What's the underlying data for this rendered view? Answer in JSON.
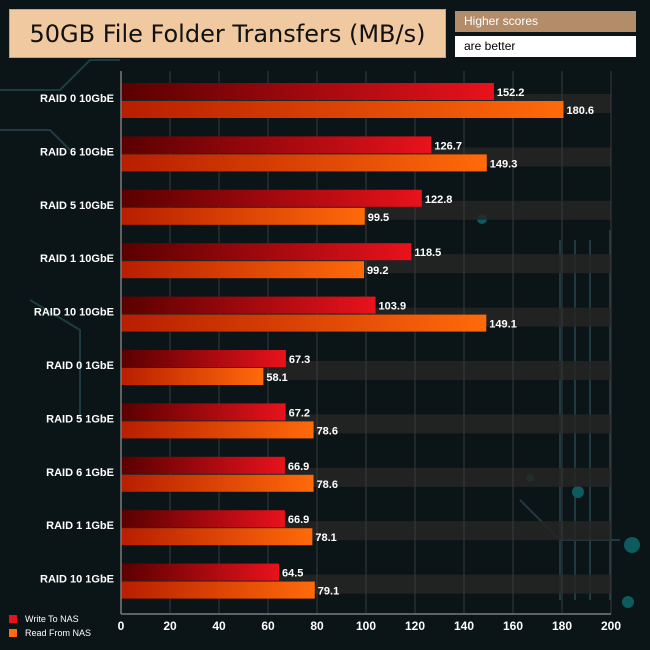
{
  "header": {
    "title": "50GB File Folder Transfers (MB/s)",
    "note_line1": "Higher scores",
    "note_line2": "are better"
  },
  "chart_data": {
    "type": "bar",
    "orientation": "horizontal",
    "categories": [
      "RAID 0 10GbE",
      "RAID 6 10GbE",
      "RAID 5 10GbE",
      "RAID 1 10GbE",
      "RAID 10 10GbE",
      "RAID 0 1GbE",
      "RAID 5 1GbE",
      "RAID 6 1GbE",
      "RAID 1 1GbE",
      "RAID 10 1GbE"
    ],
    "series": [
      {
        "name": "Write To NAS",
        "color": "#e8121c",
        "values": [
          152.2,
          126.7,
          122.8,
          118.5,
          103.9,
          67.3,
          67.2,
          66.9,
          66.9,
          64.5
        ]
      },
      {
        "name": "Read From NAS",
        "color": "#ff6a0a",
        "values": [
          180.6,
          149.3,
          99.5,
          99.2,
          149.1,
          58.1,
          78.6,
          78.6,
          78.1,
          79.1
        ]
      }
    ],
    "xlim": [
      0,
      200
    ],
    "xticks": [
      0,
      20,
      40,
      60,
      80,
      100,
      120,
      140,
      160,
      180,
      200
    ],
    "legend_position": "bottom-left"
  }
}
